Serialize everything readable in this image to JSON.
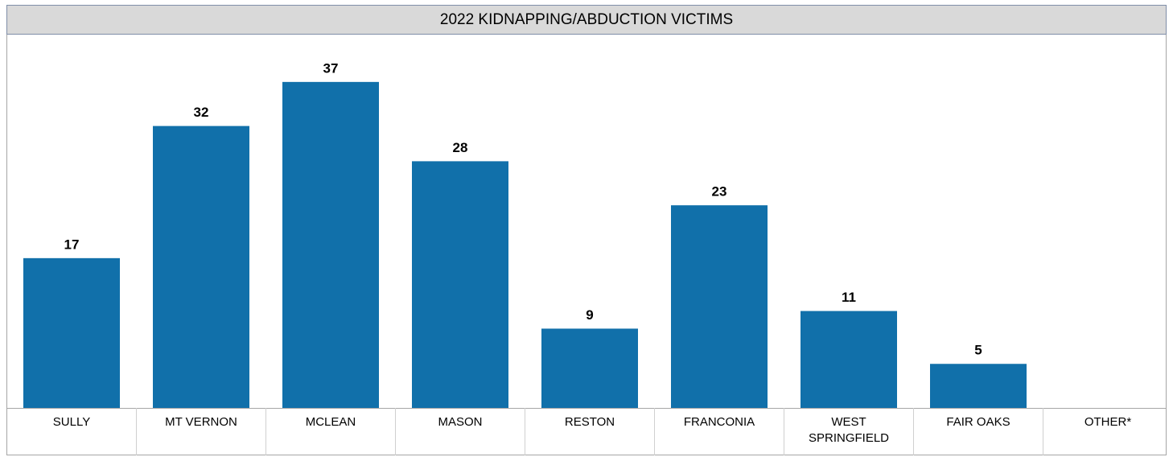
{
  "chart_data": {
    "type": "bar",
    "title": "2022 KIDNAPPING/ABDUCTION VICTIMS",
    "categories": [
      "SULLY",
      "MT VERNON",
      "MCLEAN",
      "MASON",
      "RESTON",
      "FRANCONIA",
      "WEST SPRINGFIELD",
      "FAIR OAKS",
      "OTHER*"
    ],
    "values": [
      17,
      32,
      37,
      28,
      9,
      23,
      11,
      5,
      null
    ],
    "color": "#1170aa",
    "ylim": [
      0,
      40
    ]
  }
}
